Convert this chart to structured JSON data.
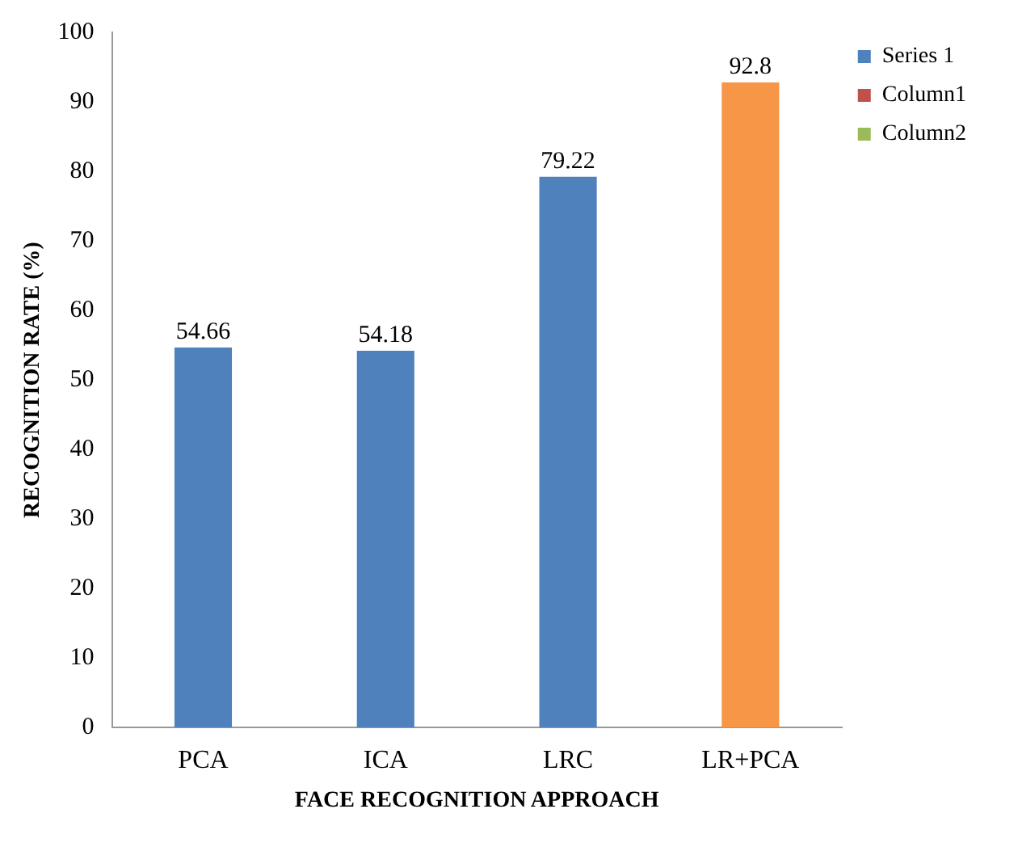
{
  "chart_data": {
    "type": "bar",
    "xlabel": "FACE RECOGNITION APPROACH",
    "ylabel": "RECOGNITION RATE (%)",
    "categories": [
      "PCA",
      "ICA",
      "LRC",
      "LR+PCA"
    ],
    "series": [
      {
        "name": "Series 1",
        "color": "#4f81bd",
        "colors": [
          "#4f81bd",
          "#4f81bd",
          "#4f81bd",
          "#f79646"
        ],
        "values": [
          54.66,
          54.18,
          79.22,
          92.8
        ]
      },
      {
        "name": "Column1",
        "color": "#c0504d",
        "values": [
          null,
          null,
          null,
          null
        ]
      },
      {
        "name": "Column2",
        "color": "#9bbb59",
        "values": [
          null,
          null,
          null,
          null
        ]
      }
    ],
    "ylim": [
      0,
      100
    ],
    "yticks": [
      0,
      10,
      20,
      30,
      40,
      50,
      60,
      70,
      80,
      90,
      100
    ],
    "data_labels": true,
    "legend": "right",
    "grid": false
  }
}
